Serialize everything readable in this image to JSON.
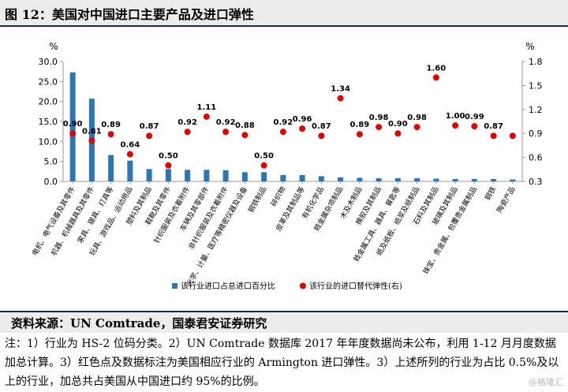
{
  "title": "图 12：美国对中国进口主要产品及进口弹性",
  "source": "资料来源：UN Comtrade，国泰君安证券研究",
  "note": "注：1）行业为 HS-2 位码分类。2）UN Comtrade 数据库 2017 年年度数据尚未公布，利用 1-12 月月度数据加总计算。3）红色点及数据标注为美国相应行业的 Armington 进口弹性。3）上述所列的行业为占比 0.5%及以上的行业，加总共占美国从中国进口约 95%的比例。",
  "watermark": "@格隆汇",
  "colors": {
    "bar": "#2e75b6",
    "dot": "#e00000"
  },
  "chart_data": {
    "type": "bar",
    "categories": [
      "电机、电气设备及其零件",
      "机器、机械器具及其零件",
      "家具、寝具、灯具等",
      "玩具、游戏品、运动用品",
      "塑料及其制品",
      "鞋靴及其零件",
      "针织服装及衣着附件",
      "车辆及其零部件",
      "非针织服装及衣着附件",
      "光学、计量、医疗等精密仪器及设备",
      "钢铁制品",
      "碎织物",
      "皮革及其制品等",
      "有机化学品",
      "贱金属杂项制品",
      "木及木制品",
      "橡胶及其制品",
      "贱金属工具、器具、餐匙等",
      "纸及纸板、纸浆及纸制品",
      "石料及其制品",
      "玻璃及其制品",
      "珠宝、贵金属、包覆贵金属制品",
      "钢铁",
      "陶瓷产品"
    ],
    "series": [
      {
        "axis": "left",
        "type": "bar",
        "values": [
          27.3,
          20.7,
          6.6,
          5.2,
          3.1,
          3.1,
          2.9,
          2.9,
          2.8,
          2.3,
          2.3,
          1.6,
          1.6,
          1.3,
          1.0,
          0.9,
          0.8,
          0.8,
          0.8,
          0.7,
          0.6,
          0.6,
          0.6,
          0.5
        ]
      },
      {
        "axis": "right",
        "type": "scatter",
        "values": [
          0.9,
          0.81,
          0.89,
          0.64,
          0.87,
          0.5,
          0.92,
          1.11,
          0.92,
          0.88,
          0.5,
          0.92,
          0.96,
          0.87,
          1.34,
          0.89,
          0.98,
          0.9,
          0.98,
          1.6,
          1.0,
          0.99,
          0.87,
          0.87
        ],
        "labels": [
          "0.90",
          "0.81",
          "0.89",
          "0.64",
          "0.87",
          "0.50",
          "0.92",
          "1.11",
          "0.92",
          "0.88",
          "0.50",
          "0.92",
          "0.96",
          "0.87",
          "1.34",
          "0.89",
          "0.98",
          "0.90",
          "0.98",
          "1.60",
          "1.00",
          "0.99",
          "0.87",
          ""
        ]
      }
    ],
    "legend": [
      "该行业进口占总进口百分比",
      "该行业的进口替代弹性(右)"
    ],
    "legend_position": "bottom",
    "y_left": {
      "label": "%",
      "ylim": [
        0,
        30
      ],
      "ticks": [
        "0.0",
        "5.0",
        "10.0",
        "15.0",
        "20.0",
        "25.0",
        "30.0"
      ]
    },
    "y_right": {
      "label": "%",
      "ylim": [
        0.3,
        1.8
      ],
      "ticks": [
        "0.3",
        "0.6",
        "0.9",
        "1.2",
        "1.5",
        "1.8"
      ]
    },
    "grid": false
  }
}
